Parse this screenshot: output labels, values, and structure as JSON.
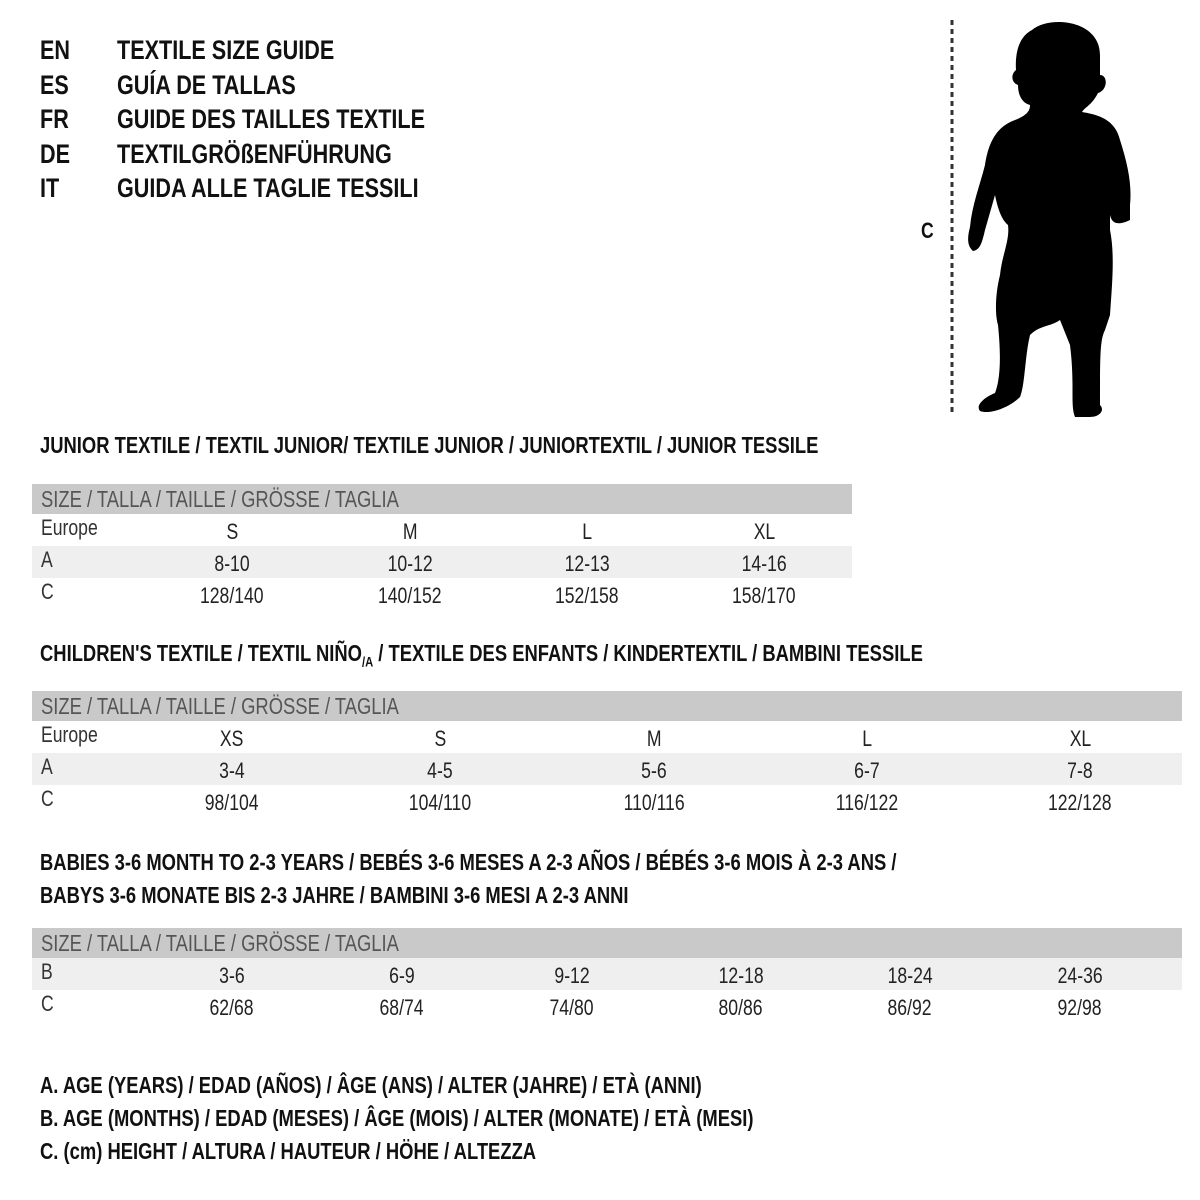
{
  "languages": [
    {
      "code": "EN",
      "text": "TEXTILE SIZE GUIDE"
    },
    {
      "code": "ES",
      "text": "GUÍA DE TALLAS"
    },
    {
      "code": "FR",
      "text": "GUIDE DES TAILLES TEXTILE"
    },
    {
      "code": "DE",
      "text": "TEXTILGRÖßENFÜHRUNG"
    },
    {
      "code": "IT",
      "text": "GUIDA ALLE TAGLIE TESSILI"
    }
  ],
  "figure": {
    "measure_label": "C",
    "icon": "child-silhouette-icon"
  },
  "junior": {
    "title": "JUNIOR TEXTILE / TEXTIL JUNIOR/ TEXTILE JUNIOR / JUNIORTEXTIL / JUNIOR TESSILE",
    "header": "SIZE / TALLA / TAILLE / GRÖSSE / TAGLIA",
    "rows": [
      {
        "label": "Europe",
        "values": [
          "S",
          "M",
          "L",
          "XL"
        ]
      },
      {
        "label": "A",
        "values": [
          "8-10",
          "10-12",
          "12-13",
          "14-16"
        ]
      },
      {
        "label": "C",
        "values": [
          "128/140",
          "140/152",
          "152/158",
          "158/170"
        ]
      }
    ]
  },
  "children": {
    "title_main": "CHILDREN'S TEXTILE / TEXTIL NIÑO",
    "title_sub": "/A",
    "title_rest": " / TEXTILE DES ENFANTS / KINDERTEXTIL / BAMBINI TESSILE",
    "header": "SIZE / TALLA / TAILLE / GRÖSSE / TAGLIA",
    "rows": [
      {
        "label": "Europe",
        "values": [
          "XS",
          "S",
          "M",
          "L",
          "XL"
        ]
      },
      {
        "label": "A",
        "values": [
          "3-4",
          "4-5",
          "5-6",
          "6-7",
          "7-8"
        ]
      },
      {
        "label": "C",
        "values": [
          "98/104",
          "104/110",
          "110/116",
          "116/122",
          "122/128"
        ]
      }
    ]
  },
  "babies": {
    "title_line1": "BABIES 3-6 MONTH TO 2-3 YEARS / BEBÉS 3-6 MESES A 2-3 AÑOS / BÉBÉS 3-6 MOIS À 2-3 ANS /",
    "title_line2": "BABYS 3-6 MONATE BIS 2-3 JAHRE / BAMBINI 3-6 MESI A 2-3 ANNI",
    "header": "SIZE / TALLA / TAILLE / GRÖSSE / TAGLIA",
    "rows": [
      {
        "label": "B",
        "values": [
          "3-6",
          "6-9",
          "9-12",
          "12-18",
          "18-24",
          "24-36"
        ]
      },
      {
        "label": "C",
        "values": [
          "62/68",
          "68/74",
          "74/80",
          "80/86",
          "86/92",
          "92/98"
        ]
      }
    ]
  },
  "legend": [
    "A. AGE (YEARS) / EDAD (AÑOS) / ÂGE (ANS) / ALTER (JAHRE) / ETÀ (ANNI)",
    "B. AGE (MONTHS) / EDAD (MESES) / ÂGE (MOIS) / ALTER (MONATE) / ETÀ (MESI)",
    "C. (cm) HEIGHT / ALTURA / HAUTEUR / HÖHE / ALTEZZA"
  ],
  "colors": {
    "header_bg": "#c9c9c9",
    "shade_bg": "#efefef",
    "text": "#111111"
  }
}
